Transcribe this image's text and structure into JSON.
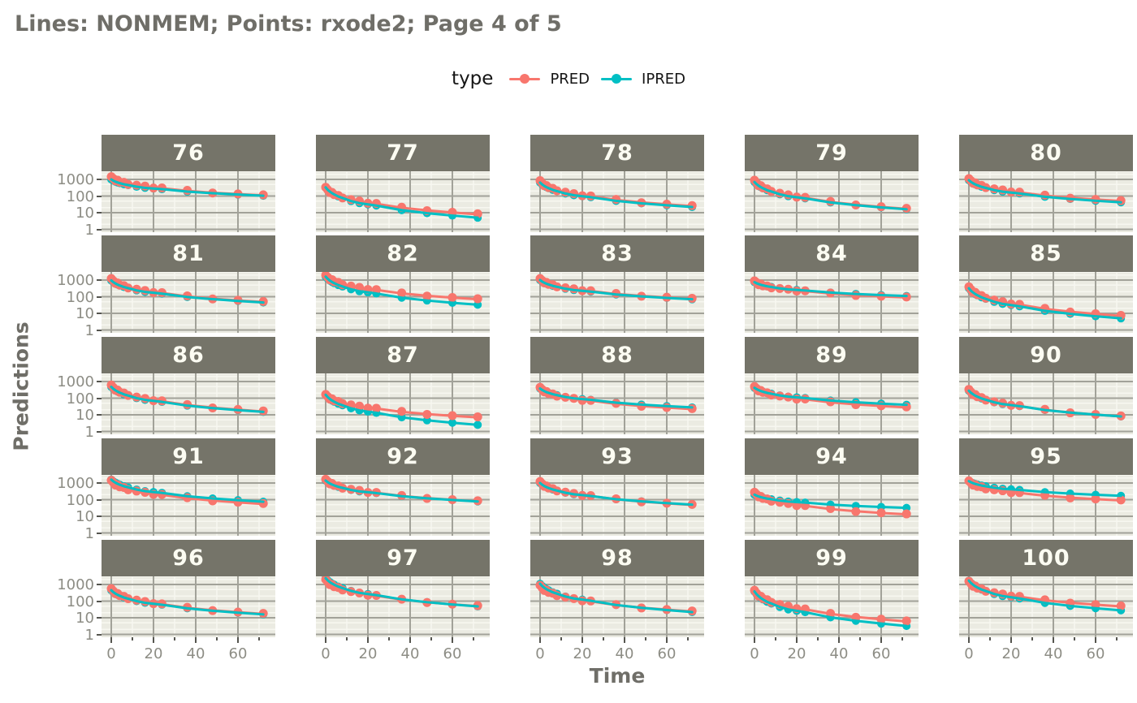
{
  "title": "Lines: NONMEM; Points: rxode2; Page 4 of 5",
  "legend": {
    "title": "type",
    "items": [
      {
        "label": "PRED",
        "color": "#F8766D"
      },
      {
        "label": "IPRED",
        "color": "#00BFC4"
      }
    ]
  },
  "axes": {
    "x_label": "Time",
    "y_label": "Predictions",
    "x_ticks": [
      0,
      20,
      40,
      60
    ],
    "x_minor": [
      10,
      30,
      50,
      70
    ],
    "y_ticks": [
      1000,
      100,
      10,
      1
    ],
    "y_minor": [
      3000,
      2000,
      500,
      200,
      50,
      20,
      5,
      2
    ],
    "x_range": [
      -4.6,
      77.7
    ],
    "y_scale": "log10",
    "y_range": [
      0.76,
      3.1
    ],
    "grid": true,
    "legend_position": "top"
  },
  "colors": {
    "pred": "#F8766D",
    "ipred": "#00BFC4",
    "strip_bg": "#757469",
    "strip_text": "#FCFCF2",
    "plot_bg": "#EBEBE2",
    "grid_major": "#A2A299",
    "grid_minor": "#F7F7F0",
    "title_text": "#6F6E68",
    "axis_text": "#8D8D85",
    "tick_mark": "#55554F"
  },
  "chart_data": {
    "type": "line",
    "x": [
      0,
      1,
      2,
      3,
      4,
      6,
      8,
      12,
      16,
      20,
      24,
      36,
      48,
      60,
      72
    ],
    "shape_g": [
      0,
      0.08,
      0.14,
      0.19,
      0.23,
      0.3,
      0.35,
      0.45,
      0.52,
      0.56,
      0.6,
      0.75,
      0.85,
      0.93,
      1.0
    ],
    "point_jitter_log10": [
      0.05,
      0.02,
      -0.05,
      0.04,
      -0.03,
      0.03,
      -0.04,
      0.02,
      0.04,
      -0.03,
      0.02,
      0.03,
      -0.02,
      0.01,
      0.03
    ],
    "series_names": [
      "PRED",
      "IPRED"
    ],
    "panels": [
      {
        "id": "76",
        "pred": [
          1300,
          110
        ],
        "ipred": [
          1000,
          105
        ]
      },
      {
        "id": "77",
        "pred": [
          300,
          8
        ],
        "ipred": [
          330,
          5
        ]
      },
      {
        "id": "78",
        "pred": [
          750,
          25
        ],
        "ipred": [
          650,
          22
        ]
      },
      {
        "id": "79",
        "pred": [
          800,
          17
        ],
        "ipred": [
          700,
          16
        ]
      },
      {
        "id": "80",
        "pred": [
          1000,
          50
        ],
        "ipred": [
          900,
          42
        ]
      },
      {
        "id": "81",
        "pred": [
          1100,
          48
        ],
        "ipred": [
          950,
          45
        ]
      },
      {
        "id": "82",
        "pred": [
          1800,
          70
        ],
        "ipred": [
          1600,
          33
        ]
      },
      {
        "id": "83",
        "pred": [
          1100,
          75
        ],
        "ipred": [
          1000,
          70
        ]
      },
      {
        "id": "84",
        "pred": [
          800,
          90
        ],
        "ipred": [
          750,
          110
        ]
      },
      {
        "id": "85",
        "pred": [
          350,
          7
        ],
        "ipred": [
          320,
          5
        ]
      },
      {
        "id": "86",
        "pred": [
          550,
          16
        ],
        "ipred": [
          480,
          15
        ]
      },
      {
        "id": "87",
        "pred": [
          150,
          7
        ],
        "ipred": [
          160,
          2.5
        ]
      },
      {
        "id": "88",
        "pred": [
          400,
          22
        ],
        "ipred": [
          380,
          28
        ]
      },
      {
        "id": "89",
        "pred": [
          450,
          28
        ],
        "ipred": [
          420,
          40
        ]
      },
      {
        "id": "90",
        "pred": [
          300,
          8
        ],
        "ipred": [
          280,
          8
        ]
      },
      {
        "id": "91",
        "pred": [
          1300,
          55
        ],
        "ipred": [
          1600,
          75
        ]
      },
      {
        "id": "92",
        "pred": [
          1500,
          80
        ],
        "ipred": [
          1400,
          78
        ]
      },
      {
        "id": "93",
        "pred": [
          1100,
          48
        ],
        "ipred": [
          1000,
          50
        ]
      },
      {
        "id": "94",
        "pred": [
          250,
          13
        ],
        "ipred": [
          200,
          32
        ]
      },
      {
        "id": "95",
        "pred": [
          1200,
          90
        ],
        "ipred": [
          1300,
          170
        ]
      },
      {
        "id": "96",
        "pred": [
          500,
          17
        ],
        "ipred": [
          450,
          16
        ]
      },
      {
        "id": "97",
        "pred": [
          1800,
          50
        ],
        "ipred": [
          2400,
          48
        ]
      },
      {
        "id": "98",
        "pred": [
          800,
          24
        ],
        "ipred": [
          1100,
          22
        ]
      },
      {
        "id": "99",
        "pred": [
          400,
          6
        ],
        "ipred": [
          380,
          3.2
        ]
      },
      {
        "id": "100",
        "pred": [
          1400,
          48
        ],
        "ipred": [
          1700,
          28
        ]
      }
    ]
  }
}
